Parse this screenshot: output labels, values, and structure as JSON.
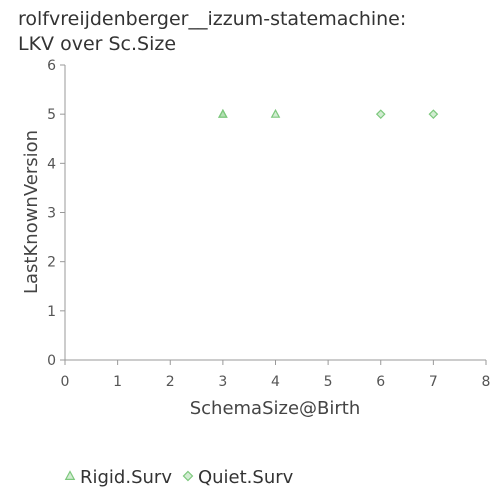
{
  "chart_data": {
    "type": "scatter",
    "title_lines": [
      "rolfvreijdenberger__izzum-statemachine:",
      "LKV over Sc.Size"
    ],
    "xlabel": "SchemaSize@Birth",
    "ylabel": "LastKnownVersion",
    "xlim": [
      0,
      8
    ],
    "ylim": [
      0,
      6
    ],
    "x_ticks": [
      0,
      1,
      2,
      3,
      4,
      5,
      6,
      7,
      8
    ],
    "y_ticks": [
      0,
      1,
      2,
      3,
      4,
      5,
      6
    ],
    "grid": false,
    "legend_position": "bottom-left",
    "series": [
      {
        "name": "Rigid.Surv",
        "marker": "triangle",
        "color": "#7dc87d",
        "points": [
          {
            "x": 3,
            "y": 5
          },
          {
            "x": 3,
            "y": 5
          },
          {
            "x": 4,
            "y": 5
          }
        ]
      },
      {
        "name": "Quiet.Surv",
        "marker": "diamond",
        "color": "#7dc87d",
        "points": [
          {
            "x": 6,
            "y": 5
          },
          {
            "x": 7,
            "y": 5
          }
        ]
      }
    ]
  }
}
